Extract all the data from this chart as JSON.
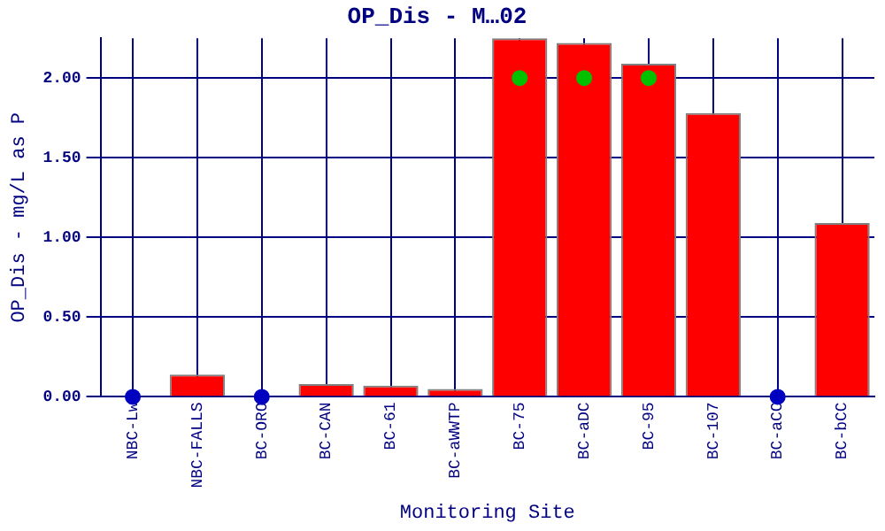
{
  "chart_data": {
    "type": "bar",
    "title": "OP_Dis - M…02",
    "xlabel": "Monitoring Site",
    "ylabel": "OP_Dis - mg/L as P",
    "categories": [
      "NBC-Lw",
      "NBC-FALLS",
      "BC-ORO",
      "BC-CAN",
      "BC-61",
      "BC-aWWTP",
      "BC-75",
      "BC-aDC",
      "BC-95",
      "BC-107",
      "BC-aCC",
      "BC-bCC"
    ],
    "series": [
      {
        "color": "#ff0000",
        "values": [
          null,
          0.14,
          null,
          0.08,
          0.07,
          0.05,
          2.25,
          2.22,
          2.09,
          1.78,
          null,
          1.09
        ]
      },
      {
        "type": "scatter",
        "color": "#0000c0",
        "marker": "circle",
        "x": [
          "NBC-Lw",
          "BC-ORO",
          "BC-aCC"
        ],
        "values": [
          0,
          0,
          0
        ]
      },
      {
        "type": "scatter",
        "color": "#00c000",
        "marker": "circle",
        "x": [
          "BC-75",
          "BC-aDC",
          "BC-95"
        ],
        "values": [
          2.0,
          2.0,
          2.0
        ]
      }
    ],
    "ylim": [
      0,
      2.25
    ],
    "yticks": [
      {
        "value": 0,
        "label": "0.00"
      },
      {
        "value": 0.5,
        "label": "0.50"
      },
      {
        "value": 1,
        "label": "1.00"
      },
      {
        "value": 1.5,
        "label": "1.50"
      },
      {
        "value": 2,
        "label": "2.00"
      }
    ],
    "grid": true,
    "legend": false
  }
}
